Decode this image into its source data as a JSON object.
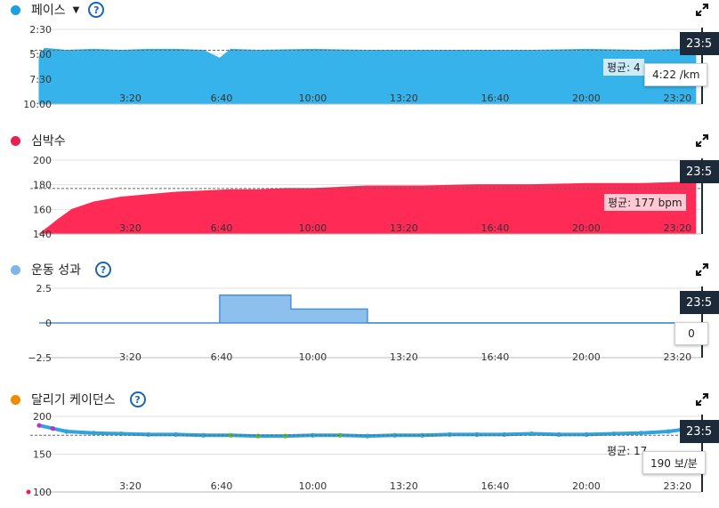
{
  "panels": [
    {
      "title": "페이스",
      "color": "#1a9fe0",
      "fill": "#35b3ea",
      "has_dropdown": true,
      "has_help": true,
      "time_label": "23:5",
      "avg_label": "평균: 4",
      "tooltip": "4:22 /km"
    },
    {
      "title": "심박수",
      "color": "#e8204f",
      "fill": "#ff2a55",
      "has_dropdown": false,
      "has_help": false,
      "time_label": "23:5",
      "avg_label": "평균: 177 bpm",
      "tooltip": ""
    },
    {
      "title": "운동 성과",
      "color": "#7fb6e6",
      "fill": "#8ec0ee",
      "has_dropdown": false,
      "has_help": true,
      "time_label": "23:5",
      "avg_label": "",
      "tooltip": "0"
    },
    {
      "title": "달리기 케이던스",
      "color": "#f08a00",
      "fill": "#2fa3dc",
      "has_dropdown": false,
      "has_help": true,
      "time_label": "23:5",
      "avg_label": "평균: 17",
      "tooltip": "190 보/분"
    }
  ],
  "chart_data": [
    {
      "type": "area",
      "title": "페이스",
      "x_ticks": [
        "3:20",
        "6:40",
        "10:00",
        "13:20",
        "16:40",
        "20:00",
        "23:20"
      ],
      "x_tick_minutes": [
        3.333,
        6.667,
        10,
        13.333,
        16.667,
        20,
        23.333
      ],
      "y_ticks": [
        "2:30",
        "5:00",
        "7:30",
        "10:00"
      ],
      "y_tick_values": [
        2.5,
        5,
        7.5,
        10
      ],
      "ylim": [
        2.5,
        10
      ],
      "y_inverted": true,
      "x_minutes": [
        0,
        0.2,
        1,
        2,
        3,
        4,
        5,
        6,
        6.6,
        7,
        8,
        10,
        12,
        14,
        16,
        18,
        20,
        22,
        23.5,
        24
      ],
      "values": [
        5.2,
        4.4,
        4.6,
        4.5,
        4.6,
        4.5,
        4.5,
        4.6,
        5.4,
        4.5,
        4.6,
        4.5,
        4.6,
        4.6,
        4.6,
        4.6,
        4.5,
        4.6,
        4.5,
        4.5
      ],
      "average_pace_label": "평균: 4"
    },
    {
      "type": "area",
      "title": "심박수",
      "x_ticks": [
        "3:20",
        "6:40",
        "10:00",
        "13:20",
        "16:40",
        "20:00",
        "23:20"
      ],
      "x_tick_minutes": [
        3.333,
        6.667,
        10,
        13.333,
        16.667,
        20,
        23.333
      ],
      "y_ticks": [
        "200",
        "180",
        "160",
        "140"
      ],
      "y_tick_values": [
        200,
        180,
        160,
        140
      ],
      "ylim": [
        140,
        200
      ],
      "x_minutes": [
        0,
        0.3,
        0.7,
        1.2,
        2,
        3,
        4,
        5,
        6,
        7,
        8,
        9,
        10,
        11,
        12,
        14,
        16,
        18,
        20,
        22,
        23.5,
        24
      ],
      "values": [
        140,
        145,
        152,
        160,
        166,
        170,
        172,
        174,
        175,
        176,
        176,
        177,
        177,
        178,
        179,
        179,
        180,
        180,
        181,
        181,
        182,
        182
      ],
      "average": 177
    },
    {
      "type": "area",
      "title": "운동 성과",
      "x_ticks": [
        "3:20",
        "6:40",
        "10:00",
        "13:20",
        "16:40",
        "20:00",
        "23:20"
      ],
      "x_tick_minutes": [
        3.333,
        6.667,
        10,
        13.333,
        16.667,
        20,
        23.333
      ],
      "y_ticks": [
        "2.5",
        "0",
        "−2.5"
      ],
      "y_tick_values": [
        2.5,
        0,
        -2.5
      ],
      "ylim": [
        -2.5,
        2.5
      ],
      "x_minutes": [
        0,
        6.6,
        6.6,
        9.2,
        9.2,
        12.0,
        12.0,
        24
      ],
      "values": [
        0,
        0,
        2,
        2,
        1,
        1,
        0,
        0
      ]
    },
    {
      "type": "scatter",
      "title": "달리기 케이던스",
      "x_ticks": [
        "3:20",
        "6:40",
        "10:00",
        "13:20",
        "16:40",
        "20:00",
        "23:20"
      ],
      "x_tick_minutes": [
        3.333,
        6.667,
        10,
        13.333,
        16.667,
        20,
        23.333
      ],
      "y_ticks": [
        "200",
        "150",
        "100"
      ],
      "y_tick_values": [
        200,
        150,
        100
      ],
      "ylim": [
        100,
        200
      ],
      "x_minutes": [
        0,
        0.5,
        1,
        2,
        3,
        4,
        5,
        6,
        7,
        8,
        9,
        10,
        11,
        12,
        13,
        14,
        15,
        16,
        17,
        18,
        19,
        20,
        21,
        22,
        23,
        23.8
      ],
      "values": [
        188,
        184,
        180,
        178,
        177,
        176,
        176,
        175,
        175,
        174,
        174,
        175,
        175,
        174,
        175,
        175,
        176,
        176,
        176,
        177,
        176,
        176,
        177,
        178,
        180,
        184
      ],
      "point_colors": [
        "#c030c8",
        "#c030c8",
        "#2fa3dc",
        "#2fa3dc",
        "#2fa3dc",
        "#2fa3dc",
        "#2fa3dc",
        "#2fa3dc",
        "#5cb82e",
        "#5cb82e",
        "#5cb82e",
        "#2fa3dc",
        "#5cb82e",
        "#2fa3dc",
        "#2fa3dc",
        "#2fa3dc",
        "#2fa3dc",
        "#2fa3dc",
        "#2fa3dc",
        "#2fa3dc",
        "#2fa3dc",
        "#2fa3dc",
        "#2fa3dc",
        "#2fa3dc",
        "#2fa3dc",
        "#c030c8"
      ],
      "outlier_values": [
        100
      ]
    }
  ]
}
